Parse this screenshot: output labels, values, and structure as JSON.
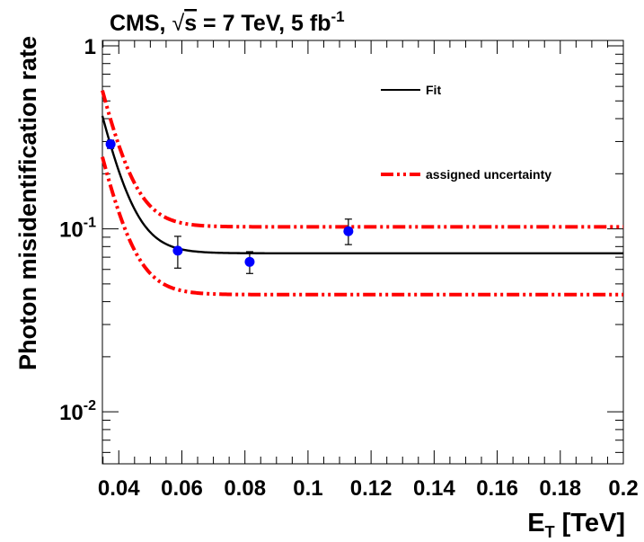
{
  "chart_data": {
    "type": "scatter",
    "title_main": "CMS, ",
    "title_sqrt_symbol": "√",
    "title_sqrt_arg": "s",
    "title_rest": " = 7 TeV, 5 fb",
    "title_superscript": "-1",
    "xlabel_main": "E",
    "xlabel_sub": "T",
    "xlabel_rest": " [TeV]",
    "ylabel": "Photon misidentification rate",
    "x_ticks": [
      "0.04",
      "0.06",
      "0.08",
      "0.1",
      "0.12",
      "0.14",
      "0.16",
      "0.18",
      "0.2"
    ],
    "y_tick_labels": [
      {
        "base": "1",
        "exp": "",
        "value": 1
      },
      {
        "base": "10",
        "exp": "-1",
        "value": 0.1
      },
      {
        "base": "10",
        "exp": "-2",
        "value": 0.01
      }
    ],
    "xlim": [
      0.0348,
      0.2
    ],
    "ylim": [
      0.0052,
      1.07
    ],
    "y_scale": "log",
    "legend_position": "top-right",
    "legend": {
      "fit_label": "Fit",
      "uncertainty_label": "assigned uncertainty"
    },
    "series": [
      {
        "kind": "data-points",
        "color": "#0000ff",
        "points": [
          {
            "x": 0.0374,
            "y": 0.29,
            "err_low": 0.015,
            "err_high": 0.015
          },
          {
            "x": 0.0587,
            "y": 0.076,
            "err_low": 0.015,
            "err_high": 0.015
          },
          {
            "x": 0.0815,
            "y": 0.066,
            "err_low": 0.009,
            "err_high": 0.009
          },
          {
            "x": 0.1128,
            "y": 0.097,
            "err_low": 0.015,
            "err_high": 0.016
          }
        ]
      },
      {
        "kind": "fit",
        "name": "Fit",
        "color": "#000000",
        "function": "y = c + A*exp(-(x - x0)/tau)",
        "params": {
          "c": 0.0735,
          "A": 0.3285,
          "x0": 0.035,
          "tau": 0.00557
        }
      },
      {
        "kind": "uncertainty-band",
        "name": "assigned uncertainty",
        "color": "#ff0000",
        "upper": {
          "c": 0.1025,
          "A": 0.4515,
          "x0": 0.035,
          "tau": 0.00557
        },
        "lower": {
          "c": 0.0437,
          "A": 0.1963,
          "x0": 0.035,
          "tau": 0.00557
        }
      }
    ]
  }
}
